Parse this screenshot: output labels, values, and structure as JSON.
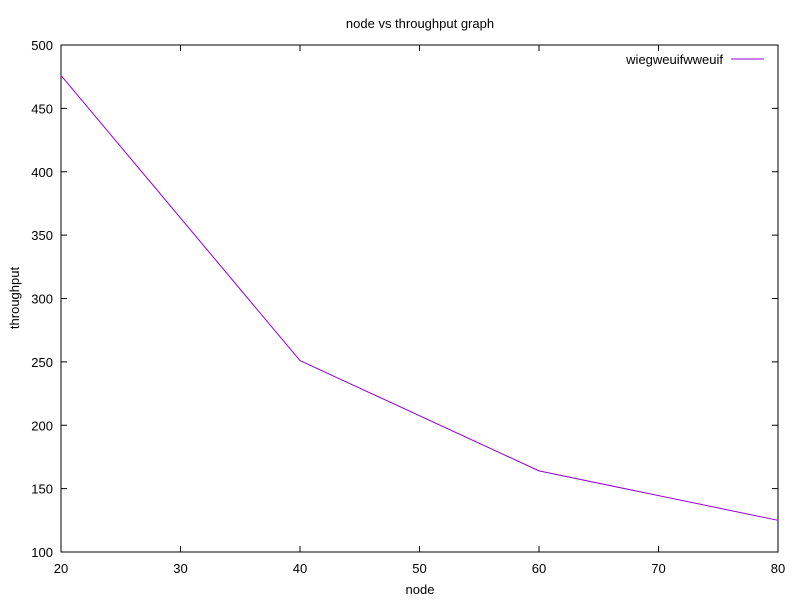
{
  "chart_data": {
    "type": "line",
    "title": "node vs throughput graph",
    "xlabel": "node",
    "ylabel": "throughput",
    "xlim": [
      20,
      80
    ],
    "ylim": [
      100,
      500
    ],
    "xticks": [
      20,
      30,
      40,
      50,
      60,
      70,
      80
    ],
    "yticks": [
      100,
      150,
      200,
      250,
      300,
      350,
      400,
      450,
      500
    ],
    "grid": false,
    "legend_position": "top-right",
    "series": [
      {
        "name": "wiegweuifwweuif",
        "color": "#9400d3",
        "x": [
          20,
          40,
          60,
          80
        ],
        "y": [
          476,
          251,
          164,
          125
        ]
      }
    ]
  }
}
